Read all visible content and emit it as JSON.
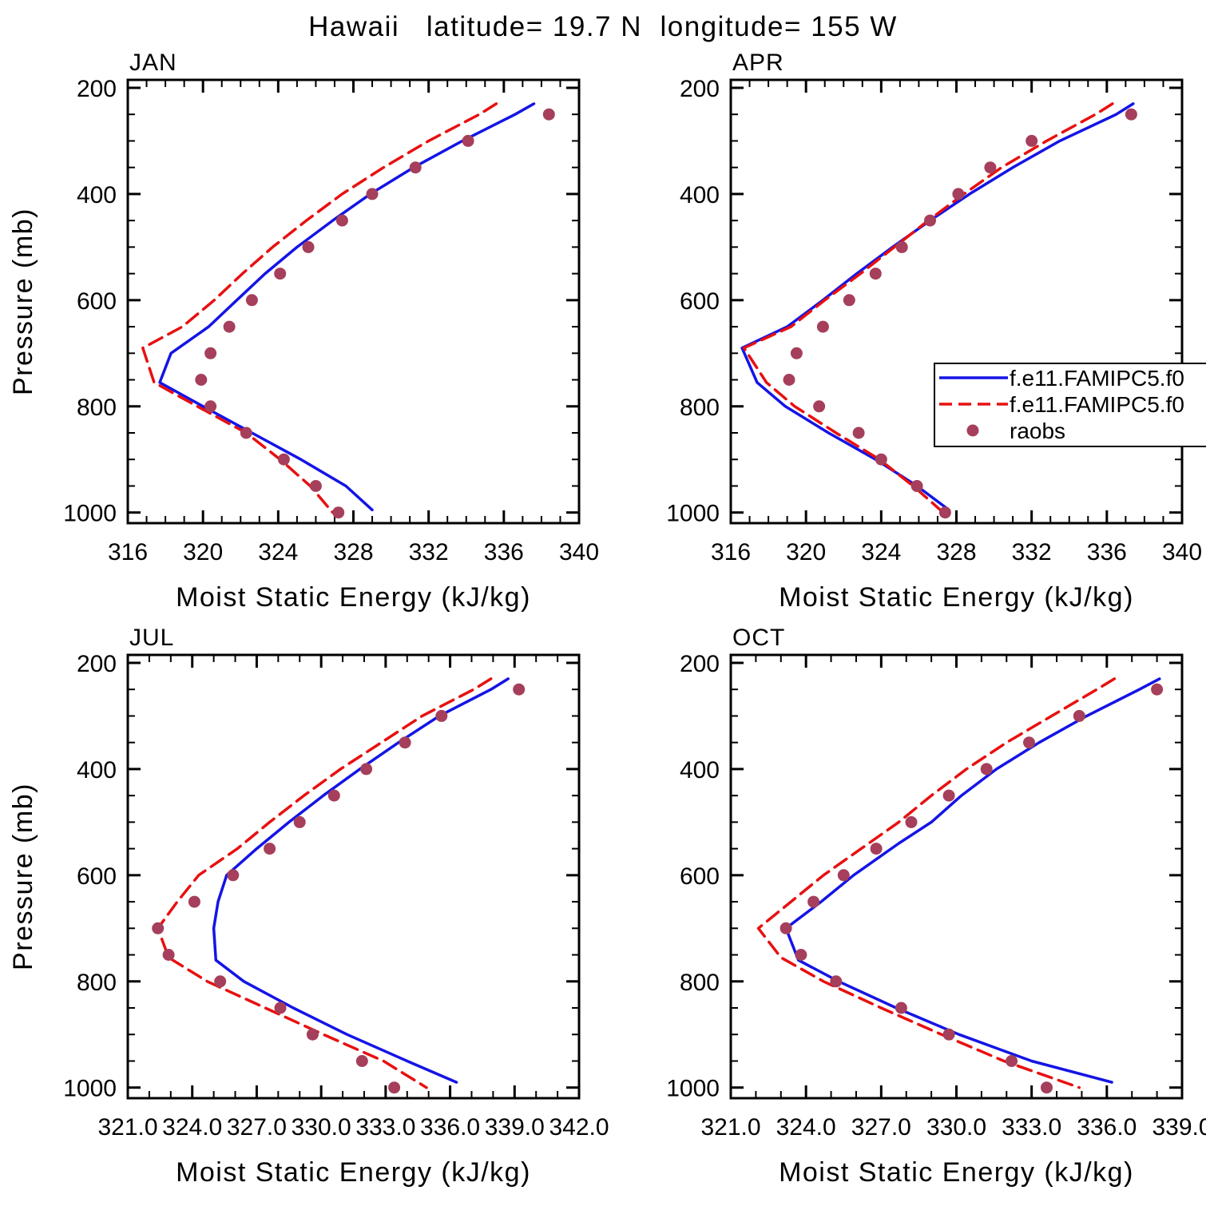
{
  "title": "Hawaii   latitude= 19.7 N  longitude= 155 W",
  "colors": {
    "model_solid": "#1414e6",
    "model_dashed": "#e81010",
    "obs": "#a53f5b",
    "frame": "#000000"
  },
  "legend": {
    "position": "inside-APR-panel",
    "entries": [
      {
        "label": "f.e11.FAMIPC5.f0",
        "color": "#1414e6",
        "style": "solid"
      },
      {
        "label": "f.e11.FAMIPC5.f0",
        "color": "#e81010",
        "style": "dashed"
      },
      {
        "label": "raobs",
        "color": "#a53f5b",
        "style": "dot"
      }
    ]
  },
  "chart_data": [
    {
      "type": "line",
      "title": "JAN",
      "xlabel": "Moist Static Energy (kJ/kg)",
      "ylabel": "Pressure (mb)",
      "xlim": [
        316,
        340
      ],
      "xticks": [
        316,
        320,
        324,
        328,
        332,
        336,
        340
      ],
      "xtick_labels": [
        "316",
        "320",
        "324",
        "328",
        "332",
        "336",
        "340"
      ],
      "x_minor_step": 1,
      "ylim": [
        1000,
        200
      ],
      "yticks": [
        200,
        400,
        600,
        800,
        1000
      ],
      "ytick_labels": [
        "200",
        "400",
        "600",
        "800",
        "1000"
      ],
      "y_minor_step": 50,
      "series": [
        {
          "name": "f.e11.FAMIPC5.f0",
          "type": "line",
          "style": "solid",
          "color": "#1414e6",
          "points": [
            [
              230,
              337.6
            ],
            [
              250,
              336.6
            ],
            [
              300,
              333.8
            ],
            [
              350,
              331.2
            ],
            [
              400,
              328.9
            ],
            [
              450,
              326.9
            ],
            [
              500,
              325.0
            ],
            [
              550,
              323.3
            ],
            [
              600,
              321.8
            ],
            [
              650,
              320.3
            ],
            [
              700,
              318.3
            ],
            [
              755,
              317.7
            ],
            [
              800,
              320.0
            ],
            [
              850,
              322.6
            ],
            [
              900,
              325.2
            ],
            [
              950,
              327.6
            ],
            [
              995,
              329.0
            ]
          ]
        },
        {
          "name": "f.e11.FAMIPC5.f0",
          "type": "line",
          "style": "dashed",
          "color": "#e81010",
          "points": [
            [
              230,
              335.6
            ],
            [
              250,
              334.7
            ],
            [
              300,
              332.0
            ],
            [
              350,
              329.6
            ],
            [
              400,
              327.4
            ],
            [
              450,
              325.5
            ],
            [
              500,
              323.7
            ],
            [
              550,
              322.1
            ],
            [
              600,
              320.6
            ],
            [
              650,
              318.9
            ],
            [
              690,
              316.8
            ],
            [
              755,
              317.4
            ],
            [
              800,
              319.7
            ],
            [
              850,
              322.3
            ],
            [
              900,
              324.1
            ],
            [
              950,
              325.7
            ],
            [
              1000,
              326.9
            ]
          ]
        },
        {
          "name": "raobs",
          "type": "scatter",
          "color": "#a53f5b",
          "points": [
            [
              250,
              338.4
            ],
            [
              300,
              334.1
            ],
            [
              350,
              331.3
            ],
            [
              400,
              329.0
            ],
            [
              450,
              327.4
            ],
            [
              500,
              325.6
            ],
            [
              550,
              324.1
            ],
            [
              600,
              322.6
            ],
            [
              650,
              321.4
            ],
            [
              700,
              320.4
            ],
            [
              750,
              319.9
            ],
            [
              800,
              320.4
            ],
            [
              850,
              322.3
            ],
            [
              900,
              324.3
            ],
            [
              950,
              326.0
            ],
            [
              1000,
              327.2
            ]
          ]
        }
      ]
    },
    {
      "type": "line",
      "title": "APR",
      "xlabel": "Moist Static Energy (kJ/kg)",
      "ylabel": "Pressure (mb)",
      "xlim": [
        316,
        340
      ],
      "xticks": [
        316,
        320,
        324,
        328,
        332,
        336,
        340
      ],
      "xtick_labels": [
        "316",
        "320",
        "324",
        "328",
        "332",
        "336",
        "340"
      ],
      "x_minor_step": 1,
      "ylim": [
        1000,
        200
      ],
      "yticks": [
        200,
        400,
        600,
        800,
        1000
      ],
      "ytick_labels": [
        "200",
        "400",
        "600",
        "800",
        "1000"
      ],
      "y_minor_step": 50,
      "series": [
        {
          "name": "f.e11.FAMIPC5.f0",
          "type": "line",
          "style": "solid",
          "color": "#1414e6",
          "points": [
            [
              230,
              337.4
            ],
            [
              250,
              336.5
            ],
            [
              300,
              333.5
            ],
            [
              350,
              331.0
            ],
            [
              400,
              328.7
            ],
            [
              450,
              326.6
            ],
            [
              500,
              324.6
            ],
            [
              550,
              322.7
            ],
            [
              600,
              320.9
            ],
            [
              650,
              319.0
            ],
            [
              690,
              316.6
            ],
            [
              755,
              317.4
            ],
            [
              800,
              318.9
            ],
            [
              850,
              321.2
            ],
            [
              900,
              323.7
            ],
            [
              950,
              325.9
            ],
            [
              995,
              327.6
            ]
          ]
        },
        {
          "name": "f.e11.FAMIPC5.f0",
          "type": "line",
          "style": "dashed",
          "color": "#e81010",
          "points": [
            [
              230,
              336.3
            ],
            [
              250,
              335.4
            ],
            [
              300,
              332.8
            ],
            [
              350,
              330.4
            ],
            [
              400,
              328.4
            ],
            [
              450,
              326.5
            ],
            [
              500,
              324.7
            ],
            [
              550,
              322.9
            ],
            [
              600,
              321.0
            ],
            [
              650,
              319.2
            ],
            [
              690,
              316.7
            ],
            [
              755,
              317.9
            ],
            [
              800,
              319.4
            ],
            [
              850,
              321.6
            ],
            [
              900,
              323.9
            ],
            [
              950,
              325.7
            ],
            [
              1000,
              327.3
            ]
          ]
        },
        {
          "name": "raobs",
          "type": "scatter",
          "color": "#a53f5b",
          "points": [
            [
              250,
              337.3
            ],
            [
              300,
              332.0
            ],
            [
              350,
              329.8
            ],
            [
              400,
              328.1
            ],
            [
              450,
              326.6
            ],
            [
              500,
              325.1
            ],
            [
              550,
              323.7
            ],
            [
              600,
              322.3
            ],
            [
              650,
              320.9
            ],
            [
              700,
              319.5
            ],
            [
              750,
              319.1
            ],
            [
              800,
              320.7
            ],
            [
              850,
              322.8
            ],
            [
              900,
              324.0
            ],
            [
              950,
              325.9
            ],
            [
              1000,
              327.4
            ]
          ]
        }
      ]
    },
    {
      "type": "line",
      "title": "JUL",
      "xlabel": "Moist Static Energy (kJ/kg)",
      "ylabel": "Pressure (mb)",
      "xlim": [
        321,
        342
      ],
      "xticks": [
        321,
        324,
        327,
        330,
        333,
        336,
        339,
        342
      ],
      "xtick_labels": [
        "321.0",
        "324.0",
        "327.0",
        "330.0",
        "333.0",
        "336.0",
        "339.0",
        "342.0"
      ],
      "x_minor_step": 1,
      "ylim": [
        1000,
        200
      ],
      "yticks": [
        200,
        400,
        600,
        800,
        1000
      ],
      "ytick_labels": [
        "200",
        "400",
        "600",
        "800",
        "1000"
      ],
      "y_minor_step": 50,
      "series": [
        {
          "name": "f.e11.FAMIPC5.f0",
          "type": "line",
          "style": "solid",
          "color": "#1414e6",
          "points": [
            [
              230,
              338.7
            ],
            [
              250,
              337.9
            ],
            [
              300,
              335.5
            ],
            [
              350,
              333.6
            ],
            [
              400,
              331.8
            ],
            [
              450,
              330.1
            ],
            [
              500,
              328.5
            ],
            [
              550,
              327.0
            ],
            [
              600,
              325.6
            ],
            [
              650,
              325.2
            ],
            [
              700,
              325.0
            ],
            [
              760,
              325.1
            ],
            [
              800,
              326.4
            ],
            [
              850,
              328.7
            ],
            [
              900,
              331.2
            ],
            [
              950,
              334.0
            ],
            [
              990,
              336.3
            ]
          ]
        },
        {
          "name": "f.e11.FAMIPC5.f0",
          "type": "line",
          "style": "dashed",
          "color": "#e81010",
          "points": [
            [
              230,
              337.9
            ],
            [
              250,
              337.1
            ],
            [
              300,
              334.7
            ],
            [
              350,
              332.8
            ],
            [
              400,
              330.9
            ],
            [
              450,
              329.2
            ],
            [
              500,
              327.6
            ],
            [
              550,
              326.1
            ],
            [
              600,
              324.3
            ],
            [
              650,
              323.3
            ],
            [
              700,
              322.4
            ],
            [
              755,
              322.9
            ],
            [
              800,
              324.7
            ],
            [
              850,
              327.4
            ],
            [
              900,
              330.1
            ],
            [
              950,
              332.9
            ],
            [
              1000,
              334.9
            ]
          ]
        },
        {
          "name": "raobs",
          "type": "scatter",
          "color": "#a53f5b",
          "points": [
            [
              250,
              339.2
            ],
            [
              300,
              335.6
            ],
            [
              350,
              333.9
            ],
            [
              400,
              332.1
            ],
            [
              450,
              330.6
            ],
            [
              500,
              329.0
            ],
            [
              550,
              327.6
            ],
            [
              600,
              325.9
            ],
            [
              650,
              324.1
            ],
            [
              700,
              322.4
            ],
            [
              750,
              322.9
            ],
            [
              800,
              325.3
            ],
            [
              850,
              328.1
            ],
            [
              900,
              329.6
            ],
            [
              950,
              331.9
            ],
            [
              1000,
              333.4
            ]
          ]
        }
      ]
    },
    {
      "type": "line",
      "title": "OCT",
      "xlabel": "Moist Static Energy (kJ/kg)",
      "ylabel": "Pressure (mb)",
      "xlim": [
        321,
        339
      ],
      "xticks": [
        321,
        324,
        327,
        330,
        333,
        336,
        339
      ],
      "xtick_labels": [
        "321.0",
        "324.0",
        "327.0",
        "330.0",
        "333.0",
        "336.0",
        "339.0"
      ],
      "x_minor_step": 1,
      "ylim": [
        1000,
        200
      ],
      "yticks": [
        200,
        400,
        600,
        800,
        1000
      ],
      "ytick_labels": [
        "200",
        "400",
        "600",
        "800",
        "1000"
      ],
      "y_minor_step": 50,
      "series": [
        {
          "name": "f.e11.FAMIPC5.f0",
          "type": "line",
          "style": "solid",
          "color": "#1414e6",
          "points": [
            [
              230,
              338.1
            ],
            [
              250,
              337.3
            ],
            [
              300,
              335.2
            ],
            [
              350,
              333.3
            ],
            [
              400,
              331.6
            ],
            [
              450,
              330.2
            ],
            [
              500,
              329.0
            ],
            [
              540,
              327.7
            ],
            [
              600,
              325.9
            ],
            [
              650,
              324.6
            ],
            [
              700,
              323.2
            ],
            [
              760,
              323.7
            ],
            [
              800,
              325.3
            ],
            [
              850,
              327.6
            ],
            [
              900,
              330.1
            ],
            [
              950,
              333.0
            ],
            [
              990,
              336.2
            ]
          ]
        },
        {
          "name": "f.e11.FAMIPC5.f0",
          "type": "line",
          "style": "dashed",
          "color": "#e81010",
          "points": [
            [
              230,
              336.3
            ],
            [
              250,
              335.6
            ],
            [
              300,
              333.8
            ],
            [
              350,
              332.0
            ],
            [
              400,
              330.4
            ],
            [
              450,
              329.0
            ],
            [
              500,
              327.7
            ],
            [
              550,
              326.2
            ],
            [
              600,
              324.7
            ],
            [
              650,
              323.4
            ],
            [
              700,
              322.1
            ],
            [
              755,
              323.0
            ],
            [
              800,
              324.7
            ],
            [
              850,
              327.0
            ],
            [
              900,
              329.4
            ],
            [
              950,
              331.9
            ],
            [
              1000,
              334.9
            ]
          ]
        },
        {
          "name": "raobs",
          "type": "scatter",
          "color": "#a53f5b",
          "points": [
            [
              250,
              338.0
            ],
            [
              300,
              334.9
            ],
            [
              350,
              332.9
            ],
            [
              400,
              331.2
            ],
            [
              450,
              329.7
            ],
            [
              500,
              328.2
            ],
            [
              550,
              326.8
            ],
            [
              600,
              325.5
            ],
            [
              650,
              324.3
            ],
            [
              700,
              323.2
            ],
            [
              750,
              323.8
            ],
            [
              800,
              325.2
            ],
            [
              850,
              327.8
            ],
            [
              900,
              329.7
            ],
            [
              950,
              332.2
            ],
            [
              1000,
              333.6
            ]
          ]
        }
      ]
    }
  ]
}
